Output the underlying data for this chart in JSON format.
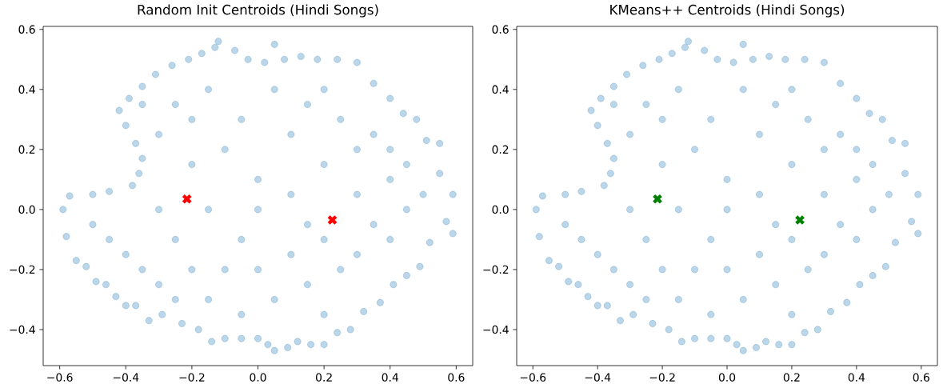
{
  "chart_data": [
    {
      "type": "scatter",
      "title": "Random Init Centroids (Hindi Songs)",
      "series": [
        {
          "color": "#1f77b4",
          "marker": "circle",
          "x": [
            -0.59,
            -0.57,
            -0.58,
            -0.55,
            -0.52,
            -0.49,
            -0.46,
            -0.43,
            -0.4,
            -0.37,
            -0.33,
            -0.29,
            -0.23,
            -0.18,
            -0.14,
            -0.1,
            -0.05,
            0.0,
            0.03,
            0.05,
            0.09,
            0.12,
            0.16,
            0.2,
            0.24,
            0.28,
            0.32,
            0.37,
            0.41,
            0.45,
            0.49,
            0.52,
            0.57,
            0.59,
            0.59,
            0.55,
            0.55,
            0.51,
            0.48,
            0.44,
            0.4,
            0.35,
            0.3,
            0.24,
            0.18,
            0.13,
            0.08,
            0.05,
            0.02,
            -0.03,
            -0.07,
            -0.12,
            -0.13,
            -0.17,
            -0.21,
            -0.26,
            -0.31,
            -0.35,
            -0.39,
            -0.42,
            -0.4,
            -0.37,
            -0.35,
            -0.36,
            -0.38,
            -0.45,
            -0.5,
            -0.5,
            -0.45,
            -0.4,
            -0.35,
            -0.3,
            -0.25,
            -0.2,
            -0.15,
            -0.1,
            -0.05,
            0.0,
            0.05,
            0.1,
            0.15,
            0.2,
            0.25,
            0.3,
            0.35,
            0.4,
            0.45,
            0.5,
            0.4,
            0.3,
            0.2,
            0.1,
            0.0,
            -0.1,
            -0.2,
            -0.3,
            -0.25,
            -0.15,
            -0.05,
            0.05,
            0.15,
            0.25,
            0.35,
            -0.3,
            -0.15,
            0.0,
            0.15,
            0.3,
            -0.2,
            0.1,
            0.2,
            -0.05,
            0.2,
            -0.25,
            0.4,
            0.45,
            -0.35
          ],
          "values": [
            0.0,
            0.045,
            -0.09,
            -0.17,
            -0.19,
            -0.24,
            -0.25,
            -0.29,
            -0.32,
            -0.32,
            -0.37,
            -0.35,
            -0.38,
            -0.4,
            -0.44,
            -0.43,
            -0.43,
            -0.43,
            -0.45,
            -0.47,
            -0.46,
            -0.44,
            -0.45,
            -0.45,
            -0.41,
            -0.4,
            -0.34,
            -0.31,
            -0.25,
            -0.22,
            -0.19,
            -0.11,
            -0.04,
            -0.08,
            0.05,
            0.12,
            0.22,
            0.23,
            0.3,
            0.32,
            0.37,
            0.42,
            0.49,
            0.5,
            0.5,
            0.51,
            0.5,
            0.55,
            0.49,
            0.5,
            0.53,
            0.56,
            0.54,
            0.52,
            0.5,
            0.48,
            0.45,
            0.41,
            0.37,
            0.33,
            0.28,
            0.22,
            0.17,
            0.12,
            0.08,
            0.06,
            0.05,
            -0.05,
            -0.1,
            -0.15,
            -0.2,
            -0.25,
            -0.1,
            -0.2,
            -0.3,
            -0.2,
            -0.1,
            -0.2,
            -0.3,
            -0.15,
            -0.25,
            -0.1,
            -0.2,
            -0.15,
            -0.05,
            -0.1,
            0.0,
            0.05,
            0.1,
            0.2,
            0.15,
            0.05,
            0.1,
            0.2,
            0.15,
            0.25,
            0.35,
            0.4,
            0.3,
            0.4,
            0.35,
            0.3,
            0.25,
            0.0,
            0.0,
            0.0,
            -0.05,
            0.05,
            0.3,
            0.25,
            0.4,
            -0.35,
            -0.35,
            -0.3,
            0.2,
            0.15,
            0.35
          ]
        },
        {
          "color": "#ff0000",
          "marker": "cross",
          "x": [
            -0.215,
            0.225
          ],
          "values": [
            0.035,
            -0.035
          ]
        }
      ],
      "xlim": [
        -0.65,
        0.65
      ],
      "ylim": [
        -0.52,
        0.61
      ],
      "xticks": [
        {
          "value": -0.6,
          "label": "−0.6"
        },
        {
          "value": -0.4,
          "label": "−0.4"
        },
        {
          "value": -0.2,
          "label": "−0.2"
        },
        {
          "value": 0.0,
          "label": "0.0"
        },
        {
          "value": 0.2,
          "label": "0.2"
        },
        {
          "value": 0.4,
          "label": "0.4"
        },
        {
          "value": 0.6,
          "label": "0.6"
        }
      ],
      "yticks": [
        {
          "value": -0.4,
          "label": "−0.4"
        },
        {
          "value": -0.2,
          "label": "−0.2"
        },
        {
          "value": 0.0,
          "label": "0.0"
        },
        {
          "value": 0.2,
          "label": "0.2"
        },
        {
          "value": 0.4,
          "label": "0.4"
        },
        {
          "value": 0.6,
          "label": "0.6"
        }
      ]
    },
    {
      "type": "scatter",
      "title": "KMeans++ Centroids (Hindi Songs)",
      "series": [
        {
          "color": "#1f77b4",
          "marker": "circle",
          "x": [
            -0.59,
            -0.57,
            -0.58,
            -0.55,
            -0.52,
            -0.49,
            -0.46,
            -0.43,
            -0.4,
            -0.37,
            -0.33,
            -0.29,
            -0.23,
            -0.18,
            -0.14,
            -0.1,
            -0.05,
            0.0,
            0.03,
            0.05,
            0.09,
            0.12,
            0.16,
            0.2,
            0.24,
            0.28,
            0.32,
            0.37,
            0.41,
            0.45,
            0.49,
            0.52,
            0.57,
            0.59,
            0.59,
            0.55,
            0.55,
            0.51,
            0.48,
            0.44,
            0.4,
            0.35,
            0.3,
            0.24,
            0.18,
            0.13,
            0.08,
            0.05,
            0.02,
            -0.03,
            -0.07,
            -0.12,
            -0.13,
            -0.17,
            -0.21,
            -0.26,
            -0.31,
            -0.35,
            -0.39,
            -0.42,
            -0.4,
            -0.37,
            -0.35,
            -0.36,
            -0.38,
            -0.45,
            -0.5,
            -0.5,
            -0.45,
            -0.4,
            -0.35,
            -0.3,
            -0.25,
            -0.2,
            -0.15,
            -0.1,
            -0.05,
            0.0,
            0.05,
            0.1,
            0.15,
            0.2,
            0.25,
            0.3,
            0.35,
            0.4,
            0.45,
            0.5,
            0.4,
            0.3,
            0.2,
            0.1,
            0.0,
            -0.1,
            -0.2,
            -0.3,
            -0.25,
            -0.15,
            -0.05,
            0.05,
            0.15,
            0.25,
            0.35,
            -0.3,
            -0.15,
            0.0,
            0.15,
            0.3,
            -0.2,
            0.1,
            0.2,
            -0.05,
            0.2,
            -0.25,
            0.4,
            0.45,
            -0.35
          ],
          "values": [
            0.0,
            0.045,
            -0.09,
            -0.17,
            -0.19,
            -0.24,
            -0.25,
            -0.29,
            -0.32,
            -0.32,
            -0.37,
            -0.35,
            -0.38,
            -0.4,
            -0.44,
            -0.43,
            -0.43,
            -0.43,
            -0.45,
            -0.47,
            -0.46,
            -0.44,
            -0.45,
            -0.45,
            -0.41,
            -0.4,
            -0.34,
            -0.31,
            -0.25,
            -0.22,
            -0.19,
            -0.11,
            -0.04,
            -0.08,
            0.05,
            0.12,
            0.22,
            0.23,
            0.3,
            0.32,
            0.37,
            0.42,
            0.49,
            0.5,
            0.5,
            0.51,
            0.5,
            0.55,
            0.49,
            0.5,
            0.53,
            0.56,
            0.54,
            0.52,
            0.5,
            0.48,
            0.45,
            0.41,
            0.37,
            0.33,
            0.28,
            0.22,
            0.17,
            0.12,
            0.08,
            0.06,
            0.05,
            -0.05,
            -0.1,
            -0.15,
            -0.2,
            -0.25,
            -0.1,
            -0.2,
            -0.3,
            -0.2,
            -0.1,
            -0.2,
            -0.3,
            -0.15,
            -0.25,
            -0.1,
            -0.2,
            -0.15,
            -0.05,
            -0.1,
            0.0,
            0.05,
            0.1,
            0.2,
            0.15,
            0.05,
            0.1,
            0.2,
            0.15,
            0.25,
            0.35,
            0.4,
            0.3,
            0.4,
            0.35,
            0.3,
            0.25,
            0.0,
            0.0,
            0.0,
            -0.05,
            0.05,
            0.3,
            0.25,
            0.4,
            -0.35,
            -0.35,
            -0.3,
            0.2,
            0.15,
            0.35
          ]
        },
        {
          "color": "#008000",
          "marker": "cross",
          "x": [
            -0.215,
            0.225
          ],
          "values": [
            0.035,
            -0.035
          ]
        }
      ],
      "xlim": [
        -0.65,
        0.65
      ],
      "ylim": [
        -0.52,
        0.61
      ],
      "xticks": [
        {
          "value": -0.6,
          "label": "−0.6"
        },
        {
          "value": -0.4,
          "label": "−0.4"
        },
        {
          "value": -0.2,
          "label": "−0.2"
        },
        {
          "value": 0.0,
          "label": "0.0"
        },
        {
          "value": 0.2,
          "label": "0.2"
        },
        {
          "value": 0.4,
          "label": "0.4"
        },
        {
          "value": 0.6,
          "label": "0.6"
        }
      ],
      "yticks": [
        {
          "value": -0.4,
          "label": "−0.4"
        },
        {
          "value": -0.2,
          "label": "−0.2"
        },
        {
          "value": 0.0,
          "label": "0.0"
        },
        {
          "value": 0.2,
          "label": "0.2"
        },
        {
          "value": 0.4,
          "label": "0.4"
        },
        {
          "value": 0.6,
          "label": "0.6"
        }
      ]
    }
  ]
}
